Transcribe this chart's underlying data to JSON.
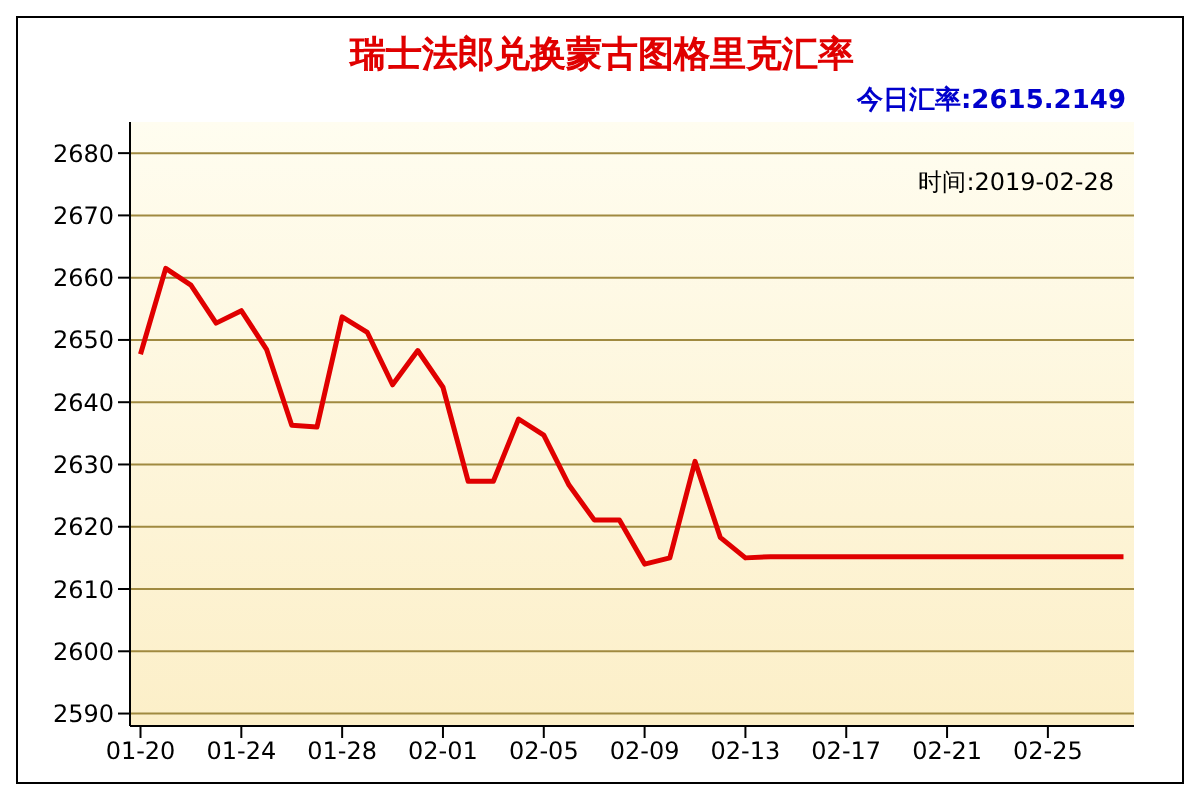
{
  "chart_data": {
    "type": "line",
    "title": "瑞士法郎兑换蒙古图格里克汇率",
    "subtitle": "今日汇率:2615.2149",
    "annotations": [
      "时间:2019-02-28"
    ],
    "x": [
      "2019-01-20",
      "2019-01-21",
      "2019-01-22",
      "2019-01-23",
      "2019-01-24",
      "2019-01-25",
      "2019-01-26",
      "2019-01-27",
      "2019-01-28",
      "2019-01-29",
      "2019-01-30",
      "2019-01-31",
      "2019-02-01",
      "2019-02-02",
      "2019-02-03",
      "2019-02-04",
      "2019-02-05",
      "2019-02-06",
      "2019-02-07",
      "2019-02-08",
      "2019-02-09",
      "2019-02-10",
      "2019-02-11",
      "2019-02-12",
      "2019-02-13",
      "2019-02-14",
      "2019-02-15",
      "2019-02-16",
      "2019-02-17",
      "2019-02-18",
      "2019-02-19",
      "2019-02-20",
      "2019-02-21",
      "2019-02-22",
      "2019-02-23",
      "2019-02-24",
      "2019-02-25",
      "2019-02-26",
      "2019-02-27",
      "2019-02-28"
    ],
    "series": [
      {
        "color": "#e00000",
        "values": [
          2647.7,
          2661.5,
          2658.8,
          2652.7,
          2654.7,
          2648.5,
          2636.3,
          2636,
          2653.7,
          2651.2,
          2642.8,
          2648.3,
          2642.4,
          2627.3,
          2627.3,
          2637.3,
          2634.7,
          2626.7,
          2621.1,
          2621.1,
          2614,
          2615,
          2630.5,
          2618.3,
          2615,
          2615.2,
          2615.2,
          2615.2,
          2615.2,
          2615.2,
          2615.2,
          2615.2,
          2615.2,
          2615.2,
          2615.2,
          2615.2,
          2615.2,
          2615.2,
          2615.2,
          2615.2
        ]
      }
    ],
    "xlim": [
      "2019-01-19T14:00",
      "2019-02-28T10:00"
    ],
    "xticks": [
      {
        "value": "2019-01-20",
        "label": "01-20"
      },
      {
        "value": "2019-01-24",
        "label": "01-24"
      },
      {
        "value": "2019-01-28",
        "label": "01-28"
      },
      {
        "value": "2019-02-01",
        "label": "02-01"
      },
      {
        "value": "2019-02-05",
        "label": "02-05"
      },
      {
        "value": "2019-02-09",
        "label": "02-09"
      },
      {
        "value": "2019-02-13",
        "label": "02-13"
      },
      {
        "value": "2019-02-17",
        "label": "02-17"
      },
      {
        "value": "2019-02-21",
        "label": "02-21"
      },
      {
        "value": "2019-02-25",
        "label": "02-25"
      }
    ],
    "ylim": [
      2588,
      2685
    ],
    "yticks": [
      2590,
      2600,
      2610,
      2620,
      2630,
      2640,
      2650,
      2660,
      2670,
      2680
    ],
    "grid": "y",
    "legend": false,
    "marker": "none",
    "line_style": "solid"
  }
}
